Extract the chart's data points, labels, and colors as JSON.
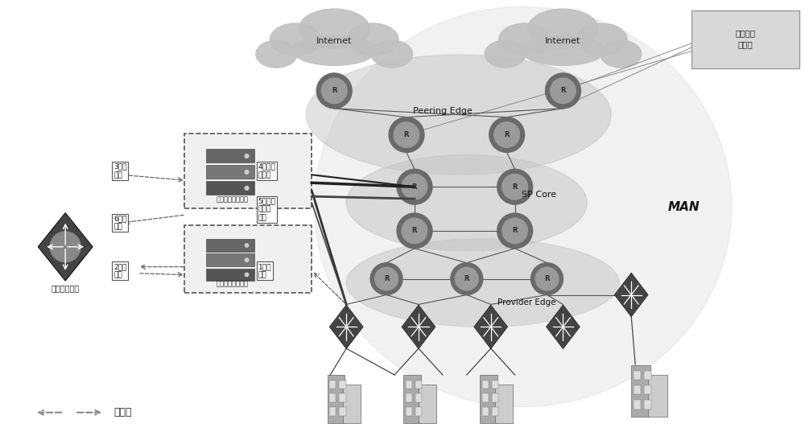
{
  "bg_color": "#ffffff",
  "peering_edge_label": "Peering Edge",
  "sp_core_label": "SP Core",
  "man_label": "MAN",
  "provider_edge_label": "Provider Edge",
  "policy_label": "策略路由\n部署点",
  "control_flow_label": "控制流",
  "biz_platform_label": "业务管理平台",
  "cleaner_label": "异常流量清洗部件",
  "detector_label": "异常流量探测部件",
  "step1_label": "1流量\n镜像",
  "step2_label": "2攻击\n告警",
  "step3_label": "3防御\n部署",
  "step4_label": "4牵引攻\n击流量",
  "step5_label": "5回注清\n洗后的\n流量",
  "step6_label": "6攻击\n解除",
  "router_color": "#777777",
  "cloud_color": "#bbbbbb",
  "man_ellipse_color": "#d4d4d4",
  "diamond_color": "#555555",
  "dark_line_color": "#222222",
  "mid_line_color": "#666666",
  "light_line_color": "#aaaaaa"
}
